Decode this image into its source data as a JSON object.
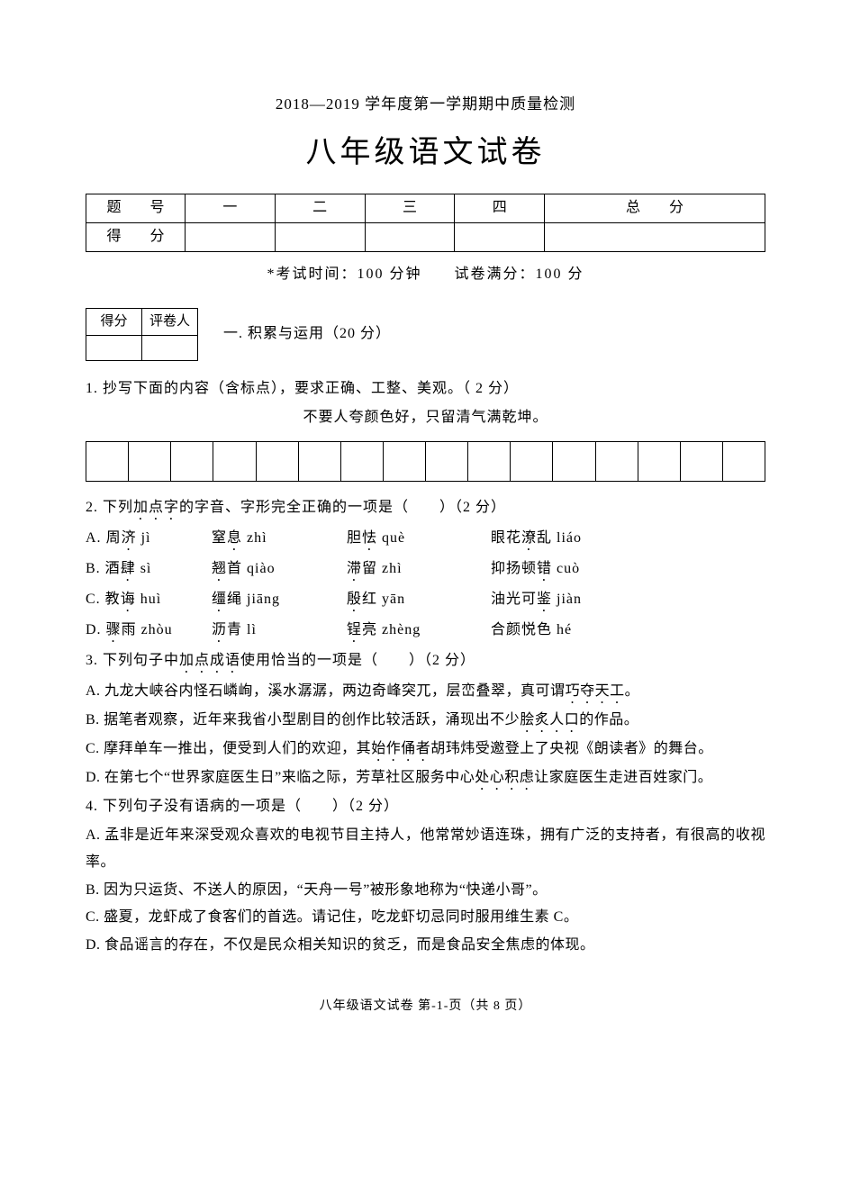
{
  "colors": {
    "text": "#000000",
    "background": "#ffffff",
    "border": "#000000"
  },
  "typography": {
    "body_fontsize_pt": 12,
    "title_fontsize_pt": 26,
    "subtitle_fontsize_pt": 13,
    "font_family": "SimSun"
  },
  "subtitle": "2018—2019 学年度第一学期期中质量检测",
  "main_title": "八年级语文试卷",
  "score_table": {
    "row1": {
      "hdr": "题　号",
      "c1": "一",
      "c2": "二",
      "c3": "三",
      "c4": "四",
      "c5": "总　分"
    },
    "row2": {
      "hdr": "得　分"
    }
  },
  "exam_meta": "*考试时间：100 分钟　　试卷满分：100 分",
  "grader_table": {
    "top_left": "得分",
    "top_right": "评卷人"
  },
  "section1_title": "一. 积累与运用（20 分）",
  "q1": {
    "stem": "1. 抄写下面的内容（含标点），要求正确、工整、美观。（ 2 分）",
    "line": "不要人夸颜色好，只留清气满乾坤。",
    "box_count": 16
  },
  "q2": {
    "stem_pre": "2. 下列",
    "stem_dot": "加点字",
    "stem_post": "的字音、字形完全正确的一项是（　　）（2 分）",
    "opts": [
      {
        "lbl": "A.",
        "w1_pre": "周",
        "w1_dot": "济",
        "w1_py": " jì",
        "w2_pre": "窒",
        "w2_dot": "息",
        "w2_py": " zhì",
        "w3_pre": "胆",
        "w3_dot": "怯",
        "w3_py": " què",
        "w4_pre": "眼花",
        "w4_dot": "潦",
        "w4_post": "乱 liáo"
      },
      {
        "lbl": "B.",
        "w1_pre": "酒",
        "w1_dot": "肆",
        "w1_py": " sì",
        "w2_pre": "",
        "w2_dot": "翘",
        "w2_post": "首 qiào",
        "w3_pre": "",
        "w3_dot": "滞",
        "w3_post": "留 zhì",
        "w4_pre": "抑扬顿",
        "w4_dot": "错",
        "w4_post": " cuò"
      },
      {
        "lbl": "C.",
        "w1_pre": "教",
        "w1_dot": "诲",
        "w1_py": " huì",
        "w2_pre": "",
        "w2_dot": "缰",
        "w2_post": "绳 jiāng",
        "w3_pre": "",
        "w3_dot": "殷",
        "w3_post": "红 yān",
        "w4_pre": "油光可",
        "w4_dot": "鉴",
        "w4_post": " jiàn"
      },
      {
        "lbl": "D.",
        "w1_pre": "",
        "w1_dot": "骤",
        "w1_post": "雨 zhòu",
        "w2_pre": "",
        "w2_dot": "沥",
        "w2_post": "青 lì",
        "w3_pre": "",
        "w3_dot": "锃",
        "w3_post": "亮 zhèng",
        "w4_pre": "合颜悦色 hé",
        "w4_dot": "",
        "w4_post": ""
      }
    ]
  },
  "q3": {
    "stem_pre": "3. 下列句子中",
    "stem_dot": "加点成语",
    "stem_post": "使用恰当的一项是（　　）（2 分）",
    "A_pre": "A. 九龙大峡谷内怪石嶙峋，溪水潺潺，两边奇峰突兀，层峦叠翠，真可谓",
    "A_dot": "巧夺天工",
    "A_post": "。",
    "B_pre": "B. 据笔者观察，近年来我省小型剧目的创作比较活跃，涌现出不少",
    "B_dot": "脍炙人口",
    "B_post": "的作品。",
    "C_pre": "C. 摩拜单车一推出，便受到人们的欢迎，其",
    "C_dot": "始作俑者",
    "C_post": "胡玮炜受邀登上了央视《朗读者》的舞台。",
    "D_pre": "D. 在第七个“世界家庭医生日”来临之际，芳草社区服务中心",
    "D_dot": "处心积虑",
    "D_post": "让家庭医生走进百姓家门。"
  },
  "q4": {
    "stem": "4. 下列句子没有语病的一项是（　　）（2 分）",
    "A": "A. 孟非是近年来深受观众喜欢的电视节目主持人，他常常妙语连珠，拥有广泛的支持者，有很高的收视率。",
    "B": "B. 因为只运货、不送人的原因，“天舟一号”被形象地称为“快递小哥”。",
    "C": "C. 盛夏，龙虾成了食客们的首选。请记住，吃龙虾切忌同时服用维生素 C。",
    "D": "D. 食品谣言的存在，不仅是民众相关知识的贫乏，而是食品安全焦虑的体现。"
  },
  "footer": "八年级语文试卷  第-1-页（共 8 页）"
}
